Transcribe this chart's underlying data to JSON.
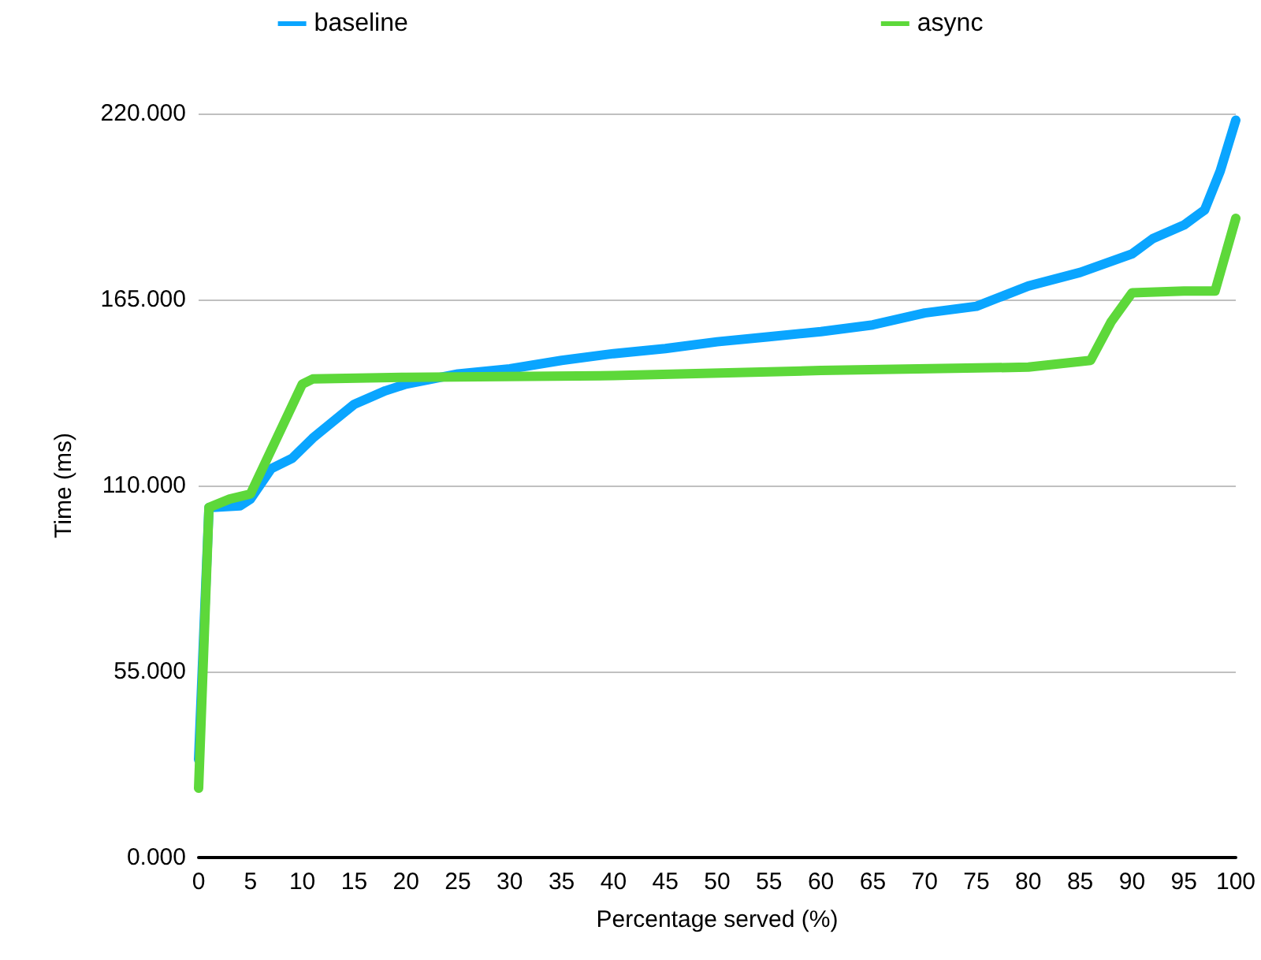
{
  "chart_data": {
    "type": "line",
    "xlabel": "Percentage served (%)",
    "ylabel": "Time (ms)",
    "xlim": [
      0,
      100
    ],
    "xticks": [
      0,
      5,
      10,
      15,
      20,
      25,
      30,
      35,
      40,
      45,
      50,
      55,
      60,
      65,
      70,
      75,
      80,
      85,
      90,
      95,
      100
    ],
    "ylim": [
      0,
      220
    ],
    "yticks": [
      {
        "value": 0,
        "label": "0.000"
      },
      {
        "value": 55,
        "label": "55.000"
      },
      {
        "value": 110,
        "label": "110.000"
      },
      {
        "value": 165,
        "label": "165.000"
      },
      {
        "value": 220,
        "label": "220.000"
      }
    ],
    "grid": "y",
    "legend": "top",
    "marker": "none",
    "line_style": "solid",
    "series": [
      {
        "name": "baseline",
        "color": "#0aa5ff",
        "x": [
          0,
          1,
          4,
          5,
          7,
          9,
          11,
          13,
          15,
          18,
          20,
          25,
          30,
          35,
          40,
          45,
          50,
          55,
          60,
          65,
          70,
          75,
          80,
          85,
          90,
          92,
          95,
          97,
          98.5,
          100
        ],
        "values": [
          29,
          103.5,
          104,
          106,
          115,
          118,
          124,
          129,
          134,
          138,
          140,
          143,
          144.5,
          147,
          149,
          150.5,
          152.5,
          154,
          155.5,
          157.5,
          161,
          163,
          169,
          173,
          178.5,
          183,
          187,
          191.5,
          203,
          218
        ]
      },
      {
        "name": "async",
        "color": "#5dd83a",
        "x": [
          0,
          1,
          3,
          5,
          10,
          11,
          20,
          40,
          60,
          80,
          86,
          88,
          90,
          95,
          98,
          100
        ],
        "values": [
          20.5,
          103.5,
          106,
          107.5,
          140,
          141.5,
          142,
          142.5,
          144,
          145,
          147,
          158.5,
          167,
          167.5,
          167.5,
          189
        ]
      }
    ]
  }
}
